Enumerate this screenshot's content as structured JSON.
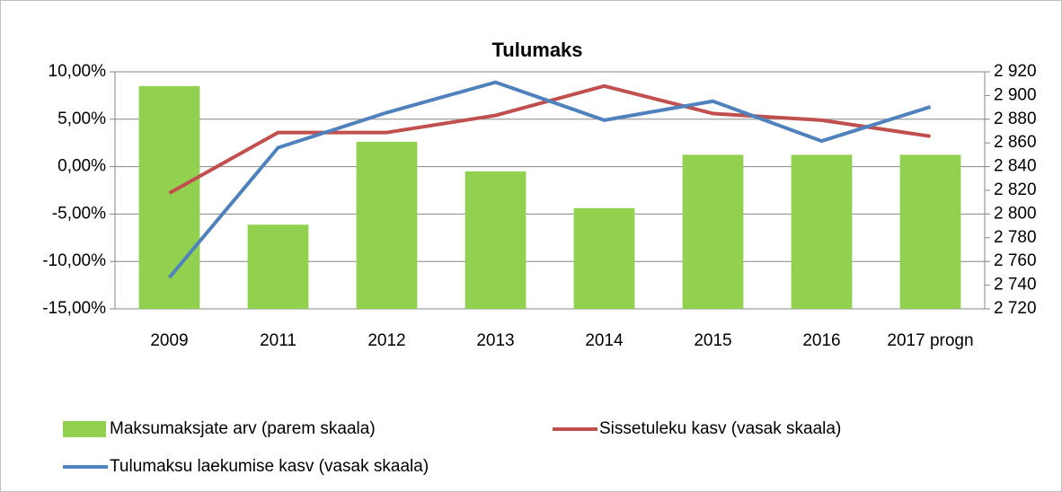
{
  "chart_data": {
    "type": "combo",
    "title": "Tulumaks",
    "categories": [
      "2009",
      "2011",
      "2012",
      "2013",
      "2014",
      "2015",
      "2016",
      "2017 progn"
    ],
    "series": [
      {
        "name": "Maksumaksjate arv (parem skaala)",
        "type": "bar",
        "axis": "y2",
        "color": "#92d050",
        "values": [
          2908,
          2791,
          2861,
          2836,
          2805,
          2850,
          2850,
          2850
        ]
      },
      {
        "name": "Sissetuleku kasv (vasak skaala)",
        "type": "line",
        "color": "#c0504d",
        "values": [
          -2.8,
          3.6,
          3.6,
          5.4,
          8.5,
          5.6,
          4.9,
          3.2
        ]
      },
      {
        "name": "Tulumaksu laekumise kasv (vasak skaala)",
        "type": "line",
        "color": "#4f81bd",
        "values": [
          -11.7,
          2.0,
          5.7,
          8.9,
          4.9,
          6.9,
          2.7,
          6.3
        ]
      }
    ],
    "ylim": [
      -15,
      10
    ],
    "yticks": [
      {
        "value": -15,
        "label": "-15,00%"
      },
      {
        "value": -10,
        "label": "-10,00%"
      },
      {
        "value": -5,
        "label": "-5,00%"
      },
      {
        "value": 0,
        "label": "0,00%"
      },
      {
        "value": 5,
        "label": "5,00%"
      },
      {
        "value": 10,
        "label": "10,00%"
      }
    ],
    "y2lim": [
      2720,
      2920
    ],
    "y2ticks": [
      {
        "value": 2720,
        "label": "2 720"
      },
      {
        "value": 2740,
        "label": "2 740"
      },
      {
        "value": 2760,
        "label": "2 760"
      },
      {
        "value": 2780,
        "label": "2 780"
      },
      {
        "value": 2800,
        "label": "2 800"
      },
      {
        "value": 2820,
        "label": "2 820"
      },
      {
        "value": 2840,
        "label": "2 840"
      },
      {
        "value": 2860,
        "label": "2 860"
      },
      {
        "value": 2880,
        "label": "2 880"
      },
      {
        "value": 2900,
        "label": "2 900"
      },
      {
        "value": 2920,
        "label": "2 920"
      }
    ],
    "grid": true,
    "legend": "bottom"
  }
}
